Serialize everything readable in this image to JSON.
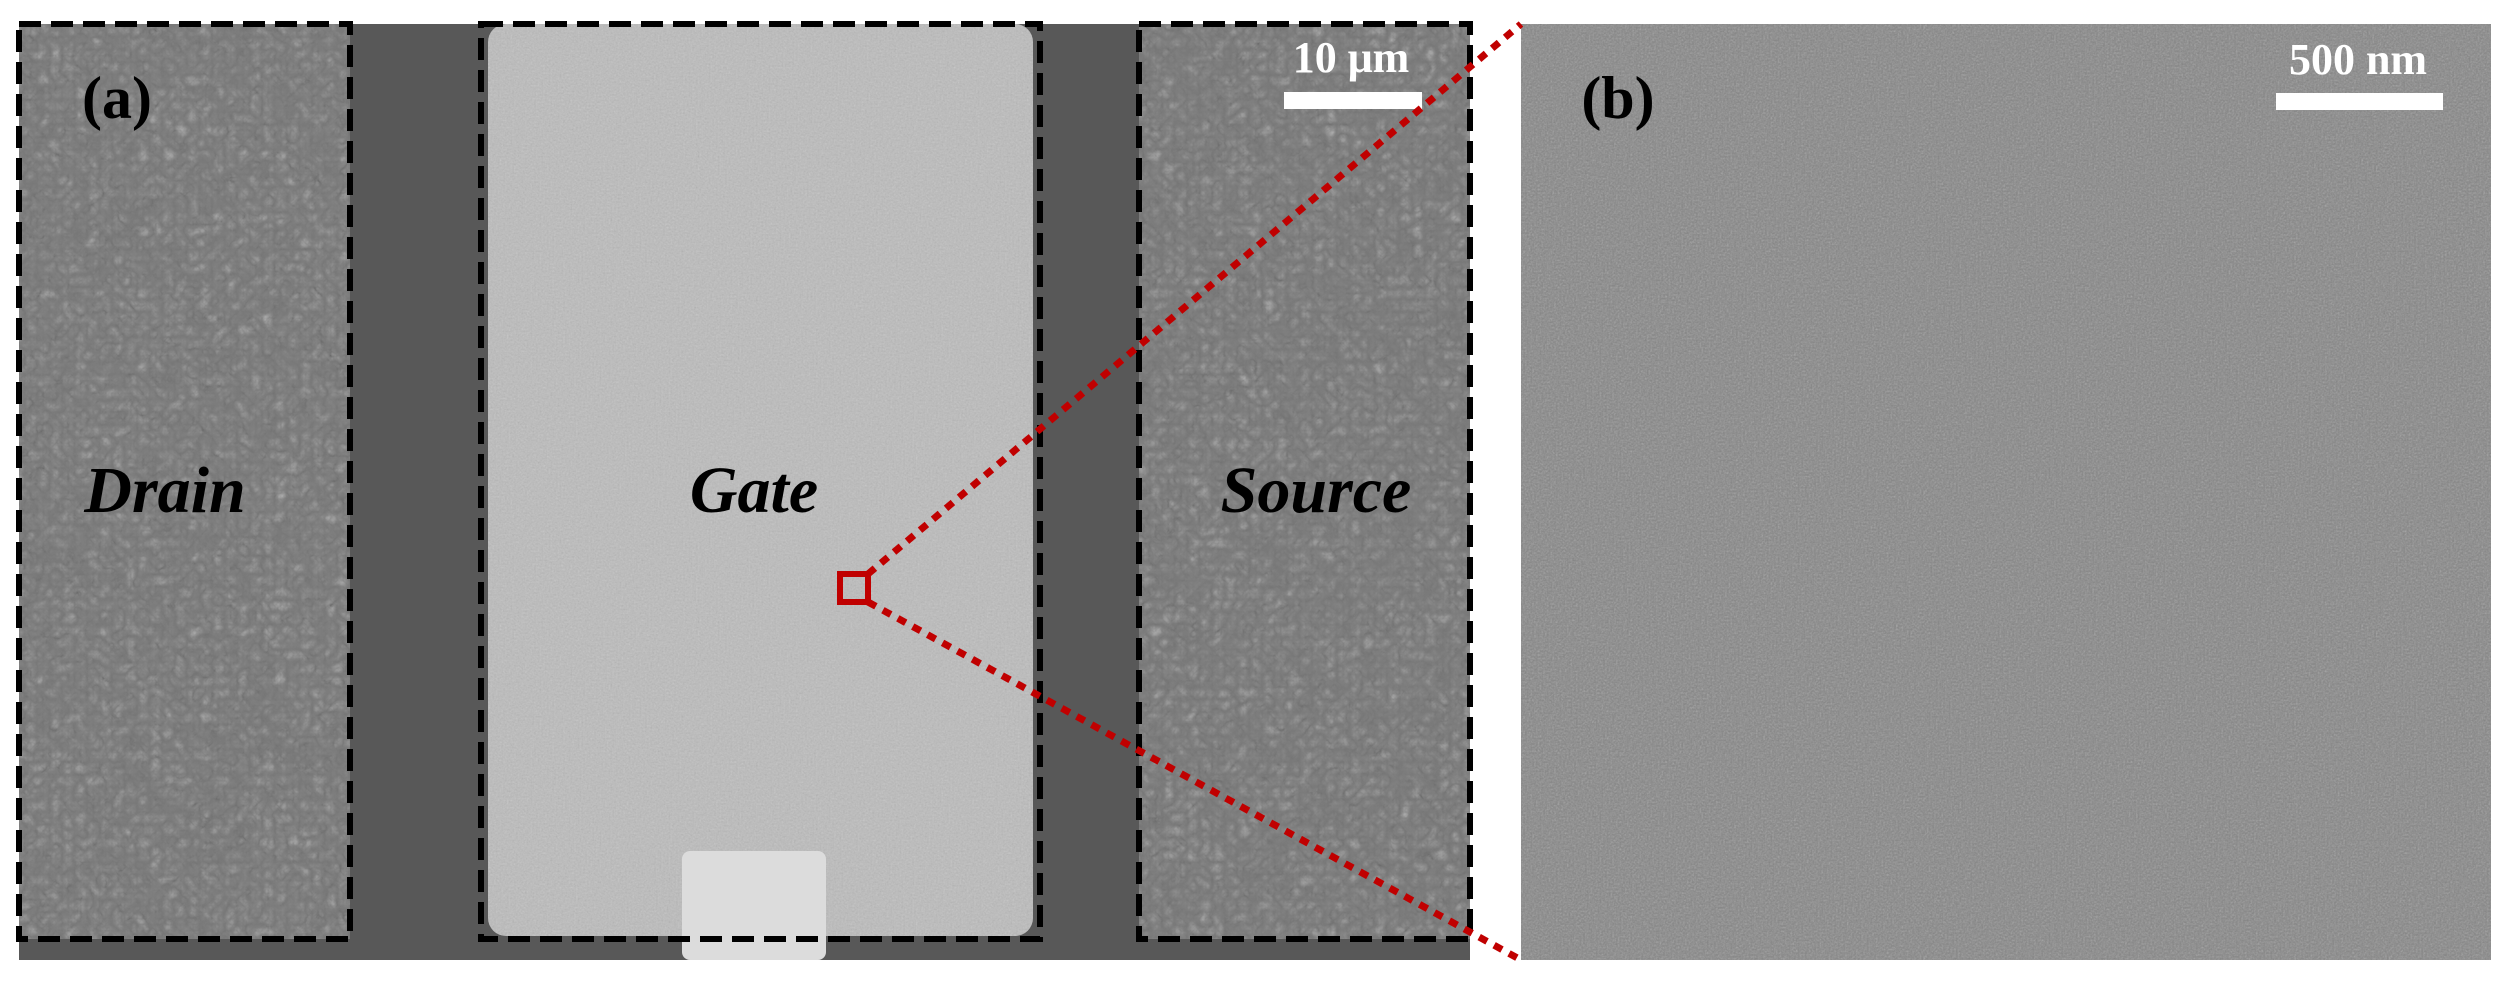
{
  "panel_a": {
    "label": "(a)",
    "regions": [
      "Drain",
      "Gate",
      "Source"
    ],
    "scale_bar": "10 μm"
  },
  "panel_b": {
    "label": "(b)",
    "scale_bar": "500 nm"
  }
}
